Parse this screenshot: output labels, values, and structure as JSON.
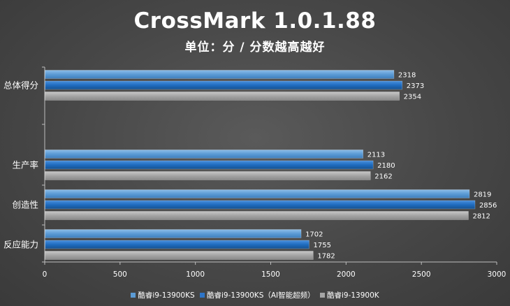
{
  "chart_data": {
    "type": "bar",
    "orientation": "horizontal",
    "title": "CrossMark 1.0.1.88",
    "subtitle": "单位：分 / 分数越高越好",
    "categories": [
      "总体得分",
      "生产率",
      "创造性",
      "反应能力"
    ],
    "series": [
      {
        "name": "酷睿i9-13900KS",
        "values": [
          2318,
          2113,
          2819,
          1702
        ],
        "color": "#5b9bd5"
      },
      {
        "name": "酷睿i9-13900KS（AI智能超频）",
        "values": [
          2373,
          2180,
          2856,
          1755
        ],
        "color": "#2e75c8"
      },
      {
        "name": "酷睿i9-13900K",
        "values": [
          2354,
          2162,
          2812,
          1782
        ],
        "color": "#a5a5a5"
      }
    ],
    "xlim": [
      0,
      3000
    ],
    "xticks": [
      0,
      500,
      1000,
      1500,
      2000,
      2500,
      3000
    ],
    "grid": false,
    "legend_position": "bottom"
  }
}
